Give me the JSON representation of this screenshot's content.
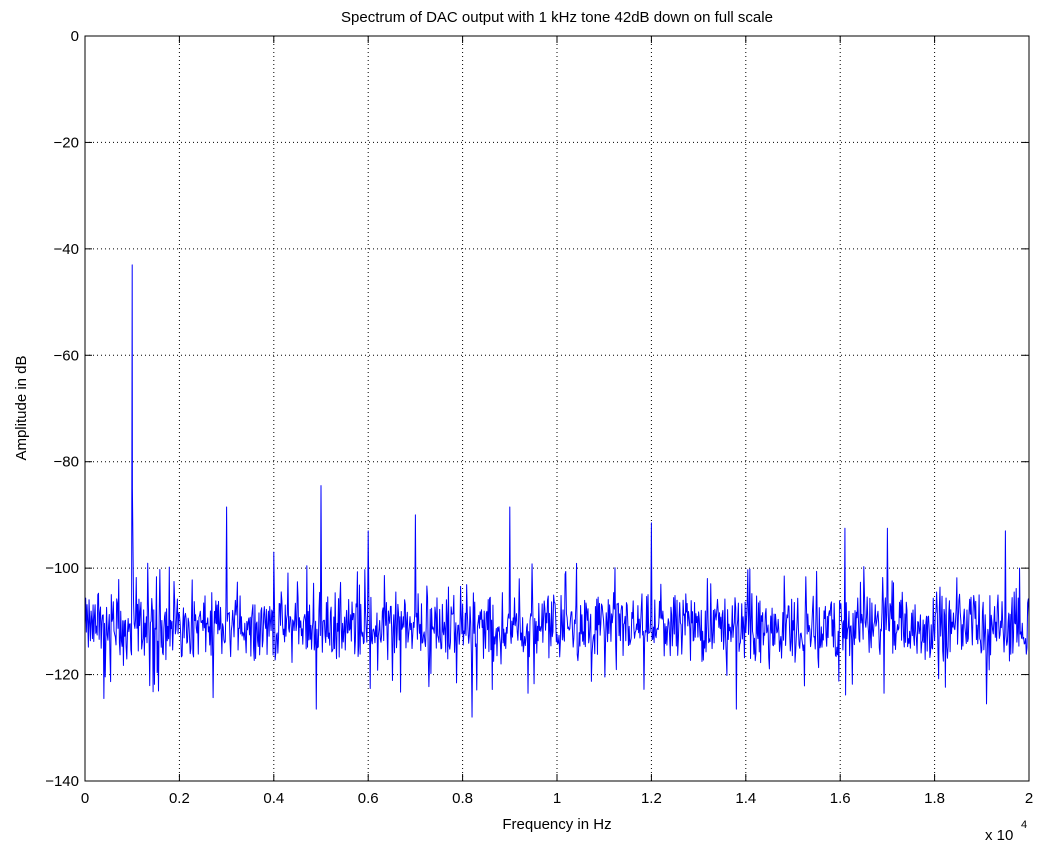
{
  "chart_data": {
    "type": "line",
    "title": "Spectrum of DAC output with 1 kHz tone 42dB down on full scale",
    "xlabel": "Frequency in Hz",
    "ylabel": "Amplitude  in dB",
    "x_multiplier_label": "x 10",
    "x_multiplier_exponent": "4",
    "xlim": [
      0,
      2
    ],
    "ylim": [
      -140,
      0
    ],
    "x_ticks": [
      0,
      0.2,
      0.4,
      0.6,
      0.8,
      1,
      1.2,
      1.4,
      1.6,
      1.8,
      2
    ],
    "x_tick_labels": [
      "0",
      "0.2",
      "0.4",
      "0.6",
      "0.8",
      "1",
      "1.2",
      "1.4",
      "1.6",
      "1.8",
      "2"
    ],
    "y_ticks": [
      0,
      -20,
      -40,
      -60,
      -80,
      -100,
      -120,
      -140
    ],
    "y_tick_labels": [
      "0",
      "−20",
      "−40",
      "−60",
      "−80",
      "−100",
      "−120",
      "−140"
    ],
    "grid": true,
    "line_color": "#0000ff",
    "noise_floor_db": -111,
    "series": [
      {
        "peaks": [
          {
            "x": 0.1,
            "y": -43
          },
          {
            "x": 0.3,
            "y": -88.5
          },
          {
            "x": 0.4,
            "y": -97
          },
          {
            "x": 0.5,
            "y": -84.5
          },
          {
            "x": 0.6,
            "y": -93
          },
          {
            "x": 0.7,
            "y": -90
          },
          {
            "x": 0.9,
            "y": -88.5
          },
          {
            "x": 1.2,
            "y": -91.5
          },
          {
            "x": 1.61,
            "y": -92.5
          },
          {
            "x": 1.7,
            "y": -92.5
          },
          {
            "x": 1.95,
            "y": -93
          },
          {
            "x": 1.98,
            "y": -100
          }
        ],
        "dips": [
          {
            "x": 0.04,
            "y": -124.5
          },
          {
            "x": 0.49,
            "y": -126.5
          },
          {
            "x": 0.82,
            "y": -128
          },
          {
            "x": 1.38,
            "y": -126.5
          },
          {
            "x": 1.91,
            "y": -125.5
          }
        ]
      }
    ]
  }
}
